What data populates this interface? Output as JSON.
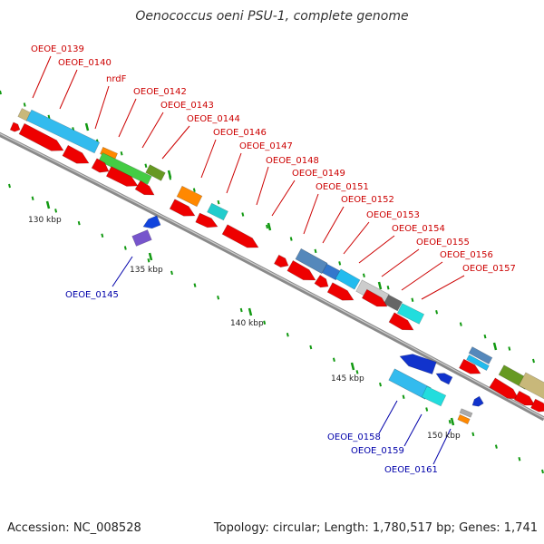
{
  "title": "Oenococcus oeni PSU-1, complete genome",
  "footer": {
    "accession": "Accession: NC_008528",
    "summary": "Topology: circular; Length: 1,780,517 bp; Genes: 1,741"
  },
  "colors": {
    "forward_label": "#cc0000",
    "reverse_label": "#0000aa",
    "cds_arrow": "#ee0000",
    "backbone": "#888888",
    "minor_tick": "#119911"
  },
  "ticks": [
    "130 kbp",
    "135 kbp",
    "140 kbp",
    "145 kbp",
    "150 kbp"
  ],
  "labels_forward": [
    "OEOE_0139",
    "OEOE_0140",
    "nrdF",
    "OEOE_0142",
    "OEOE_0143",
    "OEOE_0144",
    "OEOE_0146",
    "OEOE_0147",
    "OEOE_0148",
    "OEOE_0149",
    "OEOE_0151",
    "OEOE_0152",
    "OEOE_0153",
    "OEOE_0154",
    "OEOE_0155",
    "OEOE_0156",
    "OEOE_0157"
  ],
  "labels_reverse": [
    "OEOE_0145",
    "OEOE_0158",
    "OEOE_0159",
    "OEOE_0161"
  ]
}
